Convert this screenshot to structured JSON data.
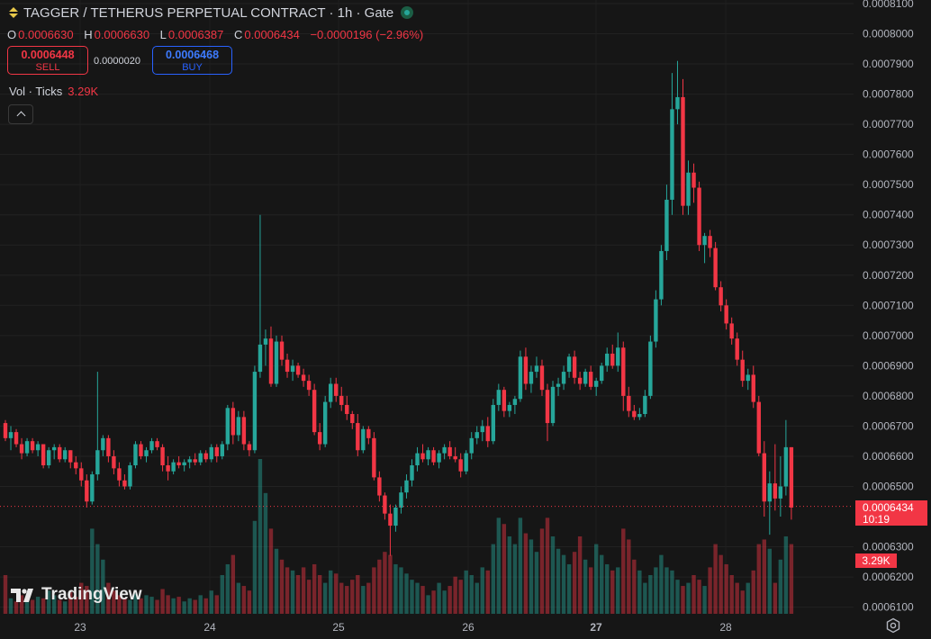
{
  "header": {
    "title": "TAGGER / TETHERUS PERPETUAL CONTRACT · 1h · Gate"
  },
  "ohlc": {
    "o_label": "O",
    "o": "0.0006630",
    "h_label": "H",
    "h": "0.0006630",
    "l_label": "L",
    "l": "0.0006387",
    "c_label": "C",
    "c": "0.0006434",
    "change": "−0.0000196 (−2.96%)"
  },
  "trade": {
    "sell_price": "0.0006448",
    "sell_label": "SELL",
    "spread": "0.0000020",
    "buy_price": "0.0006468",
    "buy_label": "BUY"
  },
  "volume_legend": {
    "label": "Vol · Ticks",
    "value": "3.29K"
  },
  "last_price": {
    "price": "0.0006434",
    "countdown": "10:19"
  },
  "volume_tag": "3.29K",
  "logo": {
    "text": "TradingView"
  },
  "colors": {
    "up": "#26a69a",
    "down": "#f23645",
    "background": "#161616",
    "buy": "#2962ff"
  },
  "icons": {
    "symbol": "up-down-arrows-icon",
    "status": "market-open-icon",
    "collapse": "chevron-up-icon",
    "settings": "gear-icon"
  },
  "chart_data": {
    "type": "candlestick",
    "x_ticks": [
      "23",
      "24",
      "25",
      "26",
      "27",
      "28"
    ],
    "y_ticks": [
      "0.0008100",
      "0.0008000",
      "0.0007900",
      "0.0007800",
      "0.0007700",
      "0.0007600",
      "0.0007500",
      "0.0007400",
      "0.0007300",
      "0.0007200",
      "0.0007100",
      "0.0007000",
      "0.0006900",
      "0.0006800",
      "0.0006700",
      "0.0006600",
      "0.0006500",
      "0.0006300",
      "0.0006200",
      "0.0006100"
    ],
    "ylim": [
      0.00061,
      0.00081
    ],
    "last_price": 0.0006434,
    "candles": [
      [
        0.000671,
        0.000672,
        0.000665,
        0.000666
      ],
      [
        0.000666,
        0.00067,
        0.000662,
        0.000668
      ],
      [
        0.000668,
        0.000669,
        0.000663,
        0.000664
      ],
      [
        0.000664,
        0.000666,
        0.000659,
        0.000661
      ],
      [
        0.000661,
        0.000666,
        0.00066,
        0.000665
      ],
      [
        0.000665,
        0.000666,
        0.000661,
        0.000662
      ],
      [
        0.000662,
        0.000665,
        0.00066,
        0.000664
      ],
      [
        0.000664,
        0.000664,
        0.000656,
        0.000657
      ],
      [
        0.000657,
        0.000663,
        0.000656,
        0.000662
      ],
      [
        0.000662,
        0.000664,
        0.000659,
        0.000663
      ],
      [
        0.000663,
        0.000664,
        0.000658,
        0.000659
      ],
      [
        0.000659,
        0.000663,
        0.000658,
        0.000662
      ],
      [
        0.000662,
        0.000662,
        0.000656,
        0.000658
      ],
      [
        0.000658,
        0.00066,
        0.000654,
        0.000656
      ],
      [
        0.000656,
        0.000658,
        0.00065,
        0.000652
      ],
      [
        0.000652,
        0.000654,
        0.000643,
        0.000645
      ],
      [
        0.000645,
        0.000655,
        0.000644,
        0.000654
      ],
      [
        0.000654,
        0.000688,
        0.000652,
        0.000662
      ],
      [
        0.000662,
        0.000667,
        0.00066,
        0.000666
      ],
      [
        0.000666,
        0.000667,
        0.000658,
        0.00066
      ],
      [
        0.00066,
        0.000662,
        0.000654,
        0.000656
      ],
      [
        0.000656,
        0.000658,
        0.00065,
        0.000652
      ],
      [
        0.000652,
        0.000654,
        0.000649,
        0.00065
      ],
      [
        0.00065,
        0.000658,
        0.000649,
        0.000657
      ],
      [
        0.000657,
        0.000665,
        0.000656,
        0.000664
      ],
      [
        0.000664,
        0.000665,
        0.000659,
        0.00066
      ],
      [
        0.00066,
        0.000663,
        0.000658,
        0.000662
      ],
      [
        0.000662,
        0.000666,
        0.000661,
        0.000665
      ],
      [
        0.000665,
        0.000666,
        0.000662,
        0.000663
      ],
      [
        0.000663,
        0.000664,
        0.000655,
        0.000657
      ],
      [
        0.000657,
        0.00066,
        0.000652,
        0.000655
      ],
      [
        0.000655,
        0.000659,
        0.000654,
        0.000658
      ],
      [
        0.000658,
        0.00066,
        0.000656,
        0.000657
      ],
      [
        0.000657,
        0.000659,
        0.000655,
        0.000658
      ],
      [
        0.000658,
        0.00066,
        0.000656,
        0.000659
      ],
      [
        0.000659,
        0.000661,
        0.000657,
        0.000658
      ],
      [
        0.000658,
        0.000662,
        0.000657,
        0.000661
      ],
      [
        0.000661,
        0.000662,
        0.000658,
        0.000659
      ],
      [
        0.000659,
        0.000664,
        0.000658,
        0.000663
      ],
      [
        0.000663,
        0.000664,
        0.000658,
        0.00066
      ],
      [
        0.00066,
        0.000665,
        0.000659,
        0.000664
      ],
      [
        0.000664,
        0.000677,
        0.000662,
        0.000676
      ],
      [
        0.000676,
        0.000678,
        0.000664,
        0.000667
      ],
      [
        0.000667,
        0.000675,
        0.000665,
        0.000673
      ],
      [
        0.000673,
        0.000675,
        0.000662,
        0.000664
      ],
      [
        0.000664,
        0.000665,
        0.00066,
        0.000662
      ],
      [
        0.000662,
        0.00069,
        0.000661,
        0.000688
      ],
      [
        0.000688,
        0.00074,
        0.000686,
        0.000697
      ],
      [
        0.000697,
        0.000702,
        0.00069,
        0.000699
      ],
      [
        0.000699,
        0.000703,
        0.000683,
        0.000684
      ],
      [
        0.000684,
        0.0007,
        0.000683,
        0.000698
      ],
      [
        0.000698,
        0.0007,
        0.00069,
        0.000692
      ],
      [
        0.000692,
        0.000694,
        0.000686,
        0.000688
      ],
      [
        0.000688,
        0.000692,
        0.000685,
        0.00069
      ],
      [
        0.00069,
        0.000691,
        0.000686,
        0.000687
      ],
      [
        0.000687,
        0.000689,
        0.000683,
        0.000685
      ],
      [
        0.000685,
        0.000687,
        0.00068,
        0.000682
      ],
      [
        0.000682,
        0.000684,
        0.000667,
        0.000668
      ],
      [
        0.000668,
        0.000671,
        0.000662,
        0.000664
      ],
      [
        0.000664,
        0.00068,
        0.000663,
        0.000678
      ],
      [
        0.000678,
        0.000686,
        0.000676,
        0.000684
      ],
      [
        0.000684,
        0.000686,
        0.000678,
        0.00068
      ],
      [
        0.00068,
        0.000683,
        0.000675,
        0.000677
      ],
      [
        0.000677,
        0.00068,
        0.000672,
        0.000674
      ],
      [
        0.000674,
        0.000675,
        0.000669,
        0.000671
      ],
      [
        0.000671,
        0.000674,
        0.00066,
        0.000662
      ],
      [
        0.000662,
        0.00067,
        0.000661,
        0.000669
      ],
      [
        0.000669,
        0.00067,
        0.000664,
        0.000666
      ],
      [
        0.000666,
        0.000668,
        0.000652,
        0.000653
      ],
      [
        0.000653,
        0.000655,
        0.000645,
        0.000647
      ],
      [
        0.000647,
        0.000648,
        0.000639,
        0.000641
      ],
      [
        0.000641,
        0.000644,
        0.000627,
        0.000637
      ],
      [
        0.000637,
        0.000644,
        0.000635,
        0.000643
      ],
      [
        0.000643,
        0.00065,
        0.000641,
        0.000648
      ],
      [
        0.000648,
        0.000654,
        0.000646,
        0.000652
      ],
      [
        0.000652,
        0.000659,
        0.00065,
        0.000657
      ],
      [
        0.000657,
        0.000663,
        0.000655,
        0.000661
      ],
      [
        0.000661,
        0.000664,
        0.000658,
        0.000659
      ],
      [
        0.000659,
        0.000663,
        0.000657,
        0.000662
      ],
      [
        0.000662,
        0.000663,
        0.000657,
        0.000658
      ],
      [
        0.000658,
        0.000662,
        0.000656,
        0.000661
      ],
      [
        0.000661,
        0.000664,
        0.000659,
        0.000663
      ],
      [
        0.000663,
        0.000665,
        0.000659,
        0.00066
      ],
      [
        0.00066,
        0.000663,
        0.000658,
        0.000659
      ],
      [
        0.000659,
        0.000661,
        0.000653,
        0.000655
      ],
      [
        0.000655,
        0.000662,
        0.000654,
        0.000661
      ],
      [
        0.000661,
        0.000668,
        0.000659,
        0.000666
      ],
      [
        0.000666,
        0.00067,
        0.000664,
        0.000668
      ],
      [
        0.000668,
        0.000672,
        0.000665,
        0.00067
      ],
      [
        0.00067,
        0.000673,
        0.000663,
        0.000665
      ],
      [
        0.000665,
        0.000679,
        0.000664,
        0.000677
      ],
      [
        0.000677,
        0.000684,
        0.000675,
        0.000682
      ],
      [
        0.000682,
        0.000683,
        0.000673,
        0.000675
      ],
      [
        0.000675,
        0.000678,
        0.000673,
        0.000677
      ],
      [
        0.000677,
        0.00068,
        0.000674,
        0.000679
      ],
      [
        0.000679,
        0.000695,
        0.000678,
        0.000693
      ],
      [
        0.000693,
        0.000696,
        0.000682,
        0.000684
      ],
      [
        0.000684,
        0.00069,
        0.000681,
        0.000688
      ],
      [
        0.000688,
        0.000693,
        0.000686,
        0.00069
      ],
      [
        0.00069,
        0.000692,
        0.00068,
        0.000682
      ],
      [
        0.000682,
        0.000684,
        0.000665,
        0.000671
      ],
      [
        0.000671,
        0.000685,
        0.00067,
        0.000683
      ],
      [
        0.000683,
        0.000686,
        0.00068,
        0.000684
      ],
      [
        0.000684,
        0.00069,
        0.000682,
        0.000688
      ],
      [
        0.000688,
        0.000694,
        0.000686,
        0.000693
      ],
      [
        0.000693,
        0.000695,
        0.000684,
        0.000686
      ],
      [
        0.000686,
        0.000688,
        0.000682,
        0.000684
      ],
      [
        0.000684,
        0.000689,
        0.000683,
        0.000688
      ],
      [
        0.000688,
        0.00069,
        0.000682,
        0.000683
      ],
      [
        0.000683,
        0.000686,
        0.00068,
        0.000685
      ],
      [
        0.000685,
        0.000691,
        0.000684,
        0.00069
      ],
      [
        0.00069,
        0.000696,
        0.000688,
        0.000694
      ],
      [
        0.000694,
        0.000697,
        0.000689,
        0.00069
      ],
      [
        0.00069,
        0.000701,
        0.000688,
        0.000696
      ],
      [
        0.000696,
        0.000698,
        0.000675,
        0.00068
      ],
      [
        0.00068,
        0.000683,
        0.000673,
        0.000675
      ],
      [
        0.000675,
        0.000677,
        0.000672,
        0.000673
      ],
      [
        0.000673,
        0.000676,
        0.000672,
        0.000674
      ],
      [
        0.000674,
        0.000682,
        0.000673,
        0.00068
      ],
      [
        0.00068,
        0.0007,
        0.000679,
        0.000698
      ],
      [
        0.000698,
        0.000715,
        0.000696,
        0.000712
      ],
      [
        0.000712,
        0.00073,
        0.00071,
        0.000728
      ],
      [
        0.000728,
        0.00075,
        0.000725,
        0.000745
      ],
      [
        0.000745,
        0.000787,
        0.00074,
        0.000775
      ],
      [
        0.000775,
        0.000791,
        0.00077,
        0.000779
      ],
      [
        0.000779,
        0.000785,
        0.00074,
        0.000743
      ],
      [
        0.000743,
        0.000758,
        0.00074,
        0.000754
      ],
      [
        0.000754,
        0.000757,
        0.000744,
        0.000749
      ],
      [
        0.000749,
        0.000751,
        0.000728,
        0.00073
      ],
      [
        0.00073,
        0.000734,
        0.000724,
        0.000733
      ],
      [
        0.000733,
        0.000735,
        0.000726,
        0.000729
      ],
      [
        0.000729,
        0.000731,
        0.000715,
        0.000716
      ],
      [
        0.000716,
        0.000718,
        0.000708,
        0.00071
      ],
      [
        0.00071,
        0.000712,
        0.000702,
        0.000704
      ],
      [
        0.000704,
        0.000706,
        0.000697,
        0.000699
      ],
      [
        0.000699,
        0.000701,
        0.00069,
        0.000692
      ],
      [
        0.000692,
        0.000695,
        0.000683,
        0.000685
      ],
      [
        0.000685,
        0.000689,
        0.000682,
        0.000687
      ],
      [
        0.000687,
        0.00069,
        0.000676,
        0.000678
      ],
      [
        0.000678,
        0.00068,
        0.00066,
        0.000661
      ],
      [
        0.000661,
        0.000665,
        0.00064,
        0.000645
      ],
      [
        0.000645,
        0.000655,
        0.000634,
        0.000651
      ],
      [
        0.000651,
        0.000664,
        0.000642,
        0.000646
      ],
      [
        0.000646,
        0.00066,
        0.00064,
        0.00065
      ],
      [
        0.00065,
        0.000672,
        0.000647,
        0.000663
      ],
      [
        0.000663,
        0.000663,
        0.000639,
        0.000643
      ]
    ],
    "volumes": [
      0.25,
      0.1,
      0.08,
      0.12,
      0.1,
      0.09,
      0.11,
      0.1,
      0.15,
      0.12,
      0.09,
      0.08,
      0.14,
      0.11,
      0.2,
      0.18,
      0.55,
      0.45,
      0.35,
      0.2,
      0.15,
      0.12,
      0.1,
      0.09,
      0.13,
      0.1,
      0.12,
      0.11,
      0.09,
      0.16,
      0.12,
      0.1,
      0.11,
      0.08,
      0.1,
      0.09,
      0.12,
      0.1,
      0.15,
      0.12,
      0.25,
      0.32,
      0.38,
      0.2,
      0.18,
      0.15,
      0.6,
      1.0,
      0.78,
      0.55,
      0.42,
      0.35,
      0.3,
      0.28,
      0.25,
      0.3,
      0.22,
      0.32,
      0.25,
      0.2,
      0.28,
      0.26,
      0.2,
      0.18,
      0.22,
      0.25,
      0.18,
      0.2,
      0.3,
      0.35,
      0.4,
      0.38,
      0.32,
      0.3,
      0.26,
      0.22,
      0.2,
      0.18,
      0.12,
      0.15,
      0.2,
      0.15,
      0.18,
      0.24,
      0.22,
      0.28,
      0.25,
      0.2,
      0.3,
      0.28,
      0.45,
      0.62,
      0.58,
      0.5,
      0.45,
      0.62,
      0.52,
      0.48,
      0.4,
      0.55,
      0.62,
      0.5,
      0.42,
      0.38,
      0.32,
      0.4,
      0.5,
      0.35,
      0.3,
      0.45,
      0.38,
      0.32,
      0.28,
      0.3,
      0.55,
      0.48,
      0.35,
      0.28,
      0.2,
      0.25,
      0.3,
      0.38,
      0.3,
      0.28,
      0.22,
      0.18,
      0.2,
      0.25,
      0.22,
      0.18,
      0.3,
      0.45,
      0.38,
      0.32,
      0.25,
      0.2,
      0.15,
      0.2,
      0.28,
      0.45,
      0.48,
      0.42,
      0.2,
      0.35,
      0.5,
      0.45
    ]
  }
}
